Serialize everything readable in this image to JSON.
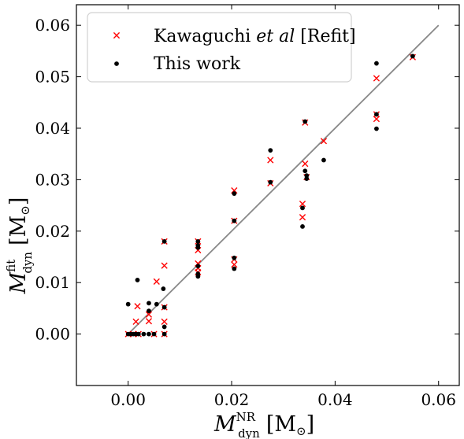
{
  "chart_data": {
    "type": "scatter",
    "xlabel": "M_dyn^NR [M_⊙]",
    "ylabel": "M_dyn^fit [M_⊙]",
    "xlabel_parts": {
      "base": "M",
      "sup": "NR",
      "sub": "dyn",
      "unit": "[M",
      "unit_sub": "⊙",
      "unit_close": "]"
    },
    "ylabel_parts": {
      "base": "M",
      "sup": "fit",
      "sub": "dyn",
      "unit": "[M",
      "unit_sub": "⊙",
      "unit_close": "]"
    },
    "xlim": [
      -0.01,
      0.064
    ],
    "ylim": [
      -0.01,
      0.064
    ],
    "x_ticks": [
      0.0,
      0.02,
      0.04,
      0.06
    ],
    "y_ticks": [
      0.0,
      0.01,
      0.02,
      0.03,
      0.04,
      0.05,
      0.06
    ],
    "x_tick_labels": [
      "0.00",
      "0.02",
      "0.04",
      "0.06"
    ],
    "y_tick_labels": [
      "0.00",
      "0.01",
      "0.02",
      "0.03",
      "0.04",
      "0.05",
      "0.06"
    ],
    "grid": false,
    "legend_position": "top-left",
    "reference_line": {
      "x": [
        0.0,
        0.06
      ],
      "y": [
        0.0,
        0.06
      ],
      "color": "#888888"
    },
    "series": [
      {
        "name": "Kawaguchi et al [Refit]",
        "marker": "x",
        "color": "#ff0000",
        "points": [
          [
            0.0,
            0.0
          ],
          [
            0.001,
            0.0
          ],
          [
            0.0015,
            0.0024
          ],
          [
            0.0018,
            0.0054
          ],
          [
            0.002,
            0.0
          ],
          [
            0.004,
            0.0025
          ],
          [
            0.004,
            0.0038
          ],
          [
            0.005,
            0.0
          ],
          [
            0.0055,
            0.0102
          ],
          [
            0.007,
            0.0
          ],
          [
            0.007,
            0.0024
          ],
          [
            0.007,
            0.0052
          ],
          [
            0.007,
            0.0133
          ],
          [
            0.007,
            0.018
          ],
          [
            0.0135,
            0.012
          ],
          [
            0.0135,
            0.0128
          ],
          [
            0.0135,
            0.0137
          ],
          [
            0.0135,
            0.0163
          ],
          [
            0.0135,
            0.018
          ],
          [
            0.0205,
            0.0135
          ],
          [
            0.0205,
            0.0145
          ],
          [
            0.0205,
            0.022
          ],
          [
            0.0205,
            0.0279
          ],
          [
            0.0275,
            0.0293
          ],
          [
            0.0275,
            0.0338
          ],
          [
            0.0337,
            0.0227
          ],
          [
            0.0337,
            0.0253
          ],
          [
            0.0342,
            0.0331
          ],
          [
            0.0342,
            0.0411
          ],
          [
            0.0345,
            0.0305
          ],
          [
            0.0378,
            0.0375
          ],
          [
            0.048,
            0.0418
          ],
          [
            0.048,
            0.0427
          ],
          [
            0.048,
            0.0497
          ],
          [
            0.055,
            0.0538
          ]
        ]
      },
      {
        "name": "This work",
        "marker": "o",
        "color": "#000000",
        "points": [
          [
            0.0,
            0.0058
          ],
          [
            0.0,
            0.0
          ],
          [
            0.0005,
            0.0
          ],
          [
            0.001,
            0.0
          ],
          [
            0.0015,
            0.0
          ],
          [
            0.0018,
            0.0105
          ],
          [
            0.002,
            0.0
          ],
          [
            0.003,
            0.0
          ],
          [
            0.004,
            0.0
          ],
          [
            0.004,
            0.0045
          ],
          [
            0.004,
            0.006
          ],
          [
            0.005,
            0.0
          ],
          [
            0.0055,
            0.0058
          ],
          [
            0.0068,
            0.0088
          ],
          [
            0.007,
            0.0
          ],
          [
            0.007,
            0.0014
          ],
          [
            0.007,
            0.0052
          ],
          [
            0.007,
            0.018
          ],
          [
            0.0135,
            0.0112
          ],
          [
            0.0135,
            0.0117
          ],
          [
            0.0135,
            0.0132
          ],
          [
            0.0135,
            0.0168
          ],
          [
            0.0135,
            0.0172
          ],
          [
            0.0135,
            0.018
          ],
          [
            0.0205,
            0.0127
          ],
          [
            0.0205,
            0.0148
          ],
          [
            0.0205,
            0.022
          ],
          [
            0.0205,
            0.0273
          ],
          [
            0.0275,
            0.0295
          ],
          [
            0.0275,
            0.0357
          ],
          [
            0.0337,
            0.0209
          ],
          [
            0.0337,
            0.0245
          ],
          [
            0.0342,
            0.0317
          ],
          [
            0.0342,
            0.0413
          ],
          [
            0.0345,
            0.0302
          ],
          [
            0.0345,
            0.0308
          ],
          [
            0.0378,
            0.0338
          ],
          [
            0.048,
            0.0399
          ],
          [
            0.048,
            0.0427
          ],
          [
            0.048,
            0.0526
          ],
          [
            0.055,
            0.054
          ]
        ]
      }
    ],
    "legend": {
      "entries": [
        {
          "label_main": "Kawaguchi ",
          "label_italic": "et al",
          "label_tail": " [Refit]"
        },
        {
          "label_main": "This work",
          "label_italic": "",
          "label_tail": ""
        }
      ]
    }
  }
}
